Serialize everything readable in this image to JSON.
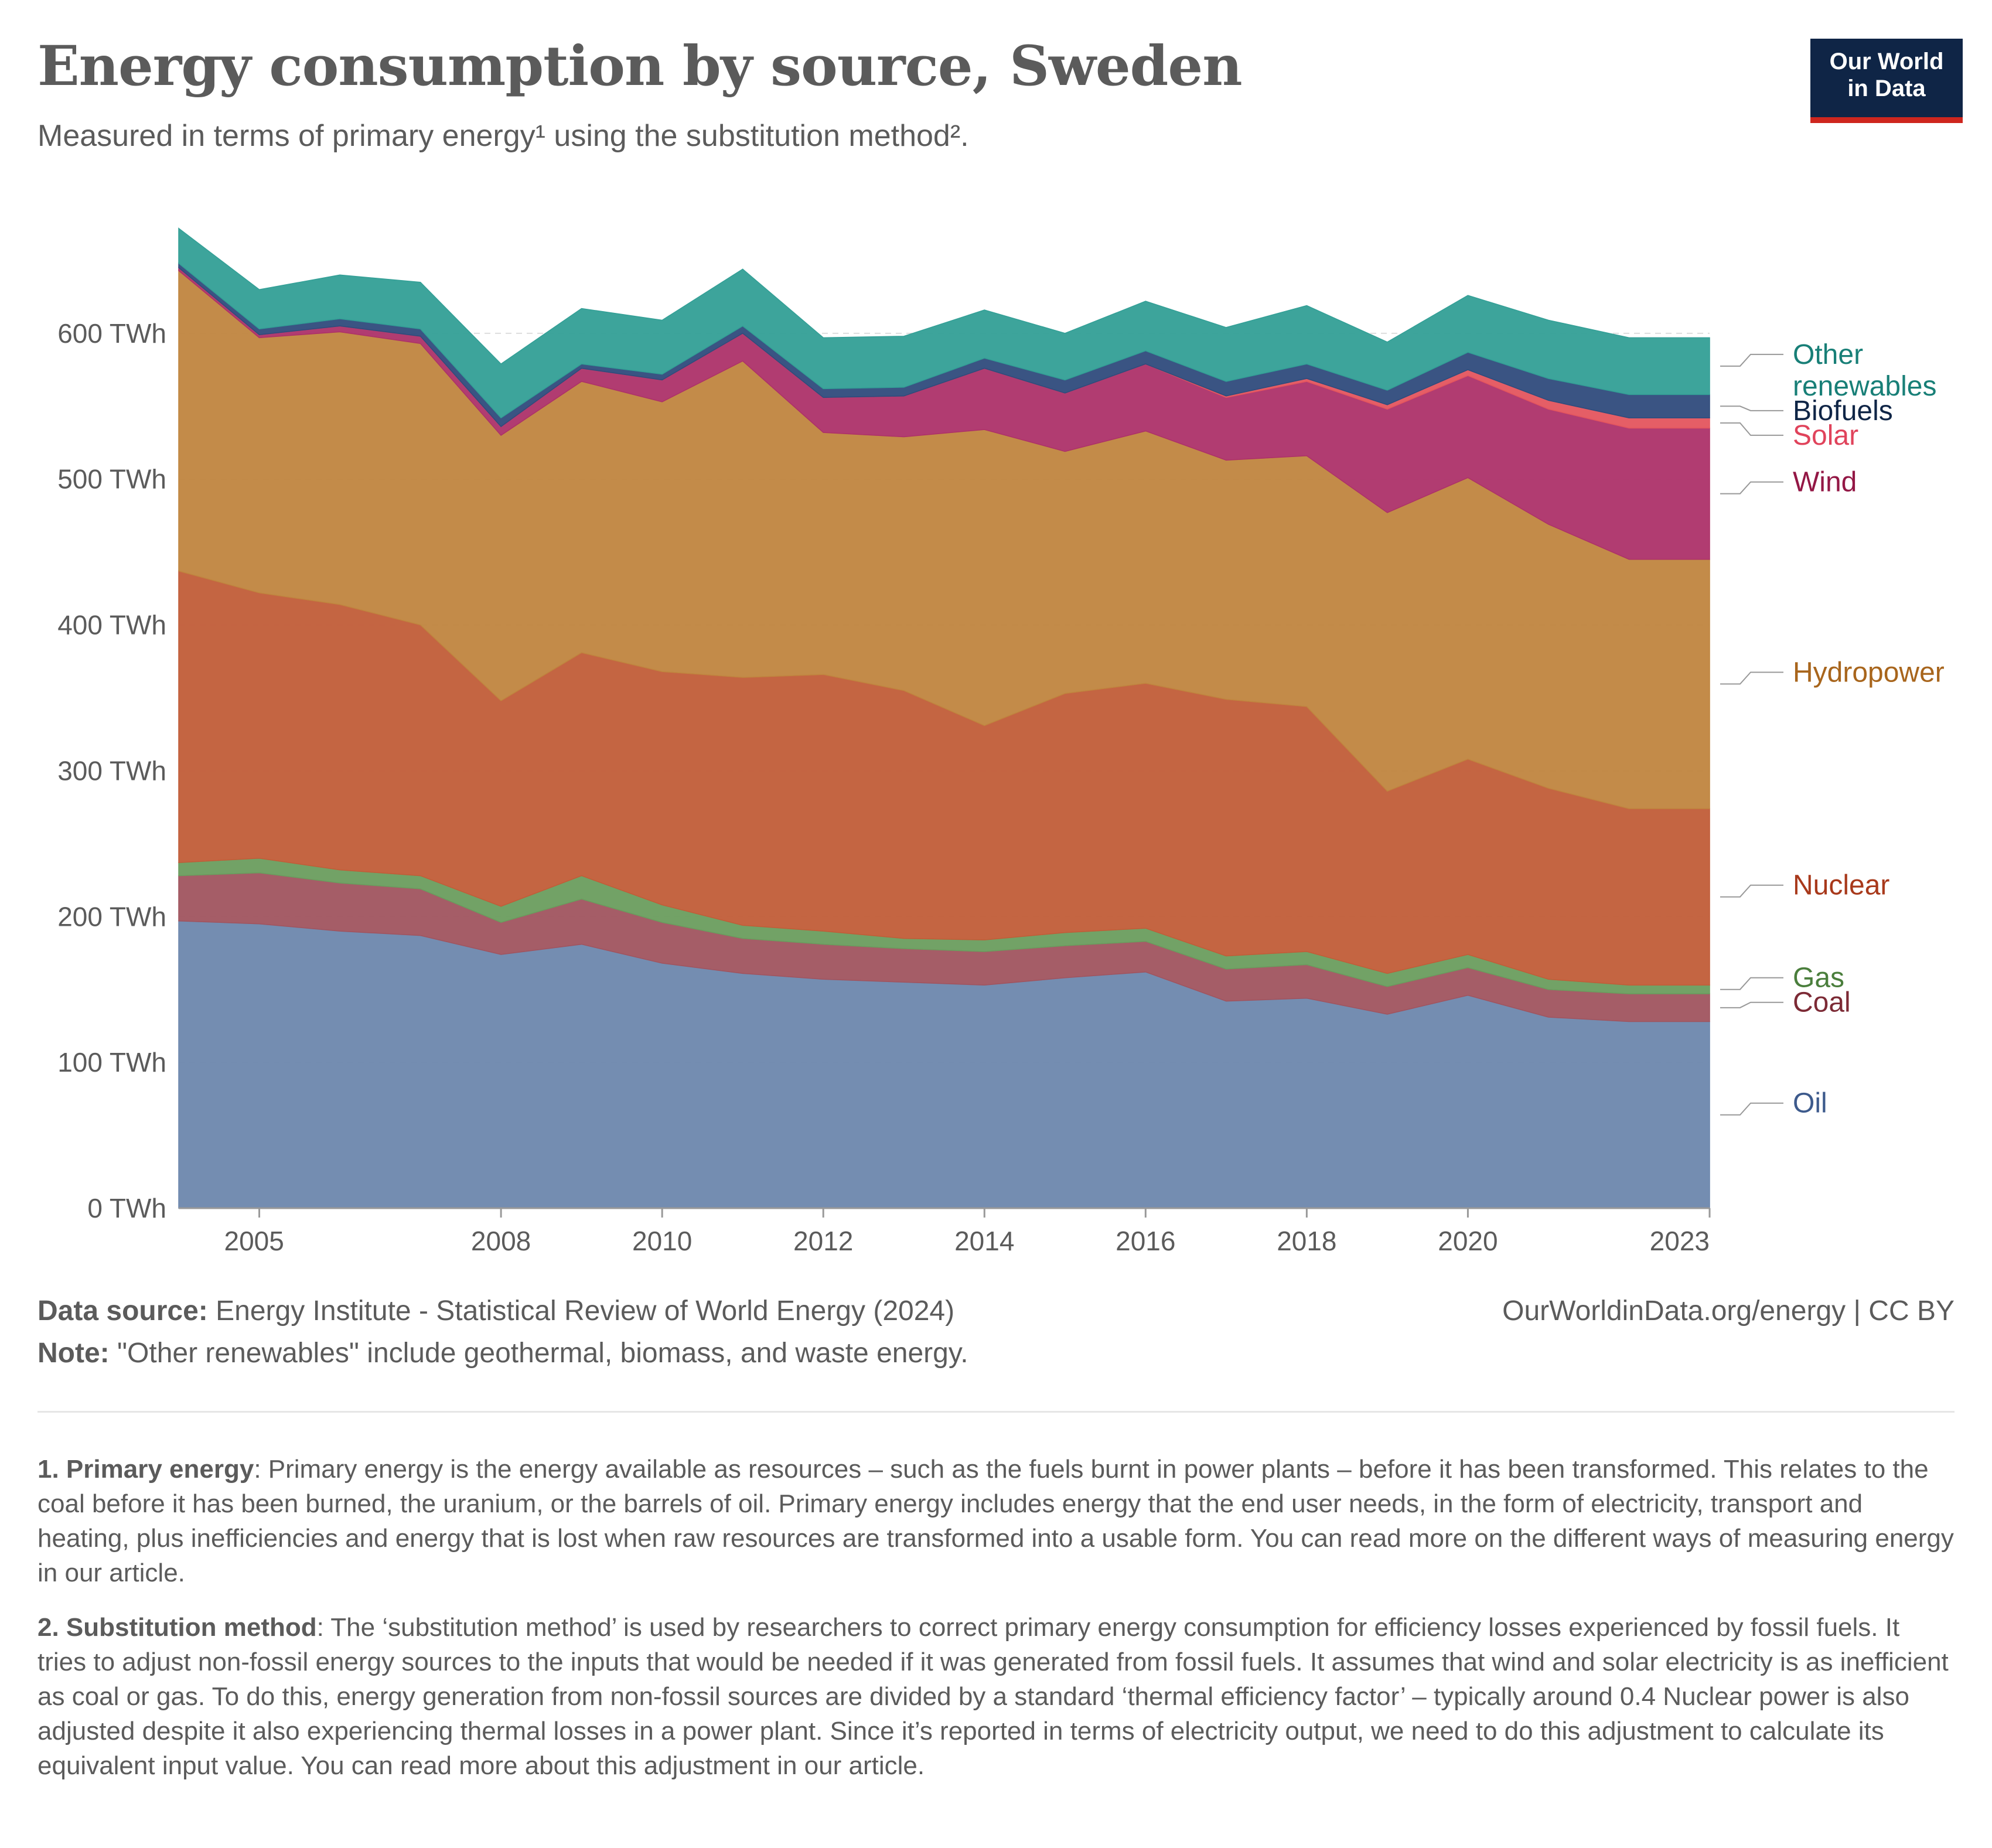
{
  "title": "Energy consumption by source, Sweden",
  "subtitle": "Measured in terms of primary energy¹ using the substitution method².",
  "logo": {
    "line1": "Our World",
    "line2": "in Data"
  },
  "chart_data": {
    "type": "area",
    "stacked": true,
    "x": [
      2004,
      2005,
      2006,
      2007,
      2008,
      2009,
      2010,
      2011,
      2012,
      2013,
      2014,
      2015,
      2016,
      2017,
      2018,
      2019,
      2020,
      2021,
      2022,
      2023
    ],
    "x_tick_labels": [
      "2005",
      "2008",
      "2010",
      "2012",
      "2014",
      "2016",
      "2018",
      "2020",
      "2023"
    ],
    "y_tick_labels": [
      "0 TWh",
      "100 TWh",
      "200 TWh",
      "300 TWh",
      "400 TWh",
      "500 TWh",
      "600 TWh"
    ],
    "ylim": [
      0,
      700
    ],
    "y_ticks": [
      0,
      100,
      200,
      300,
      400,
      500,
      600
    ],
    "unit": "TWh",
    "grid": true,
    "legend_placement": "right",
    "series": [
      {
        "name": "Oil",
        "color": "#6d87ad",
        "values": [
          197,
          195,
          190,
          187,
          174,
          181,
          168,
          161,
          157,
          155,
          153,
          158,
          162,
          142,
          144,
          133,
          146,
          131,
          128,
          128
        ]
      },
      {
        "name": "Coal",
        "color": "#a0545f",
        "values": [
          31,
          35,
          33,
          32,
          22,
          31,
          28,
          24,
          24,
          23,
          23,
          22,
          21,
          22,
          23,
          19,
          19,
          19,
          19,
          19
        ]
      },
      {
        "name": "Gas",
        "color": "#6a9d5e",
        "values": [
          9,
          10,
          9,
          9,
          11,
          16,
          12,
          9,
          9,
          7,
          8,
          9,
          9,
          9,
          9,
          9,
          9,
          7,
          6,
          6
        ]
      },
      {
        "name": "Nuclear",
        "color": "#c15d38",
        "values": [
          200,
          182,
          182,
          172,
          141,
          153,
          160,
          170,
          176,
          170,
          147,
          164,
          168,
          176,
          168,
          125,
          134,
          131,
          121,
          121
        ]
      },
      {
        "name": "Hydropower",
        "color": "#c0853f",
        "values": [
          206,
          175,
          187,
          193,
          182,
          186,
          185,
          217,
          166,
          174,
          203,
          166,
          173,
          164,
          172,
          191,
          193,
          181,
          171,
          171
        ]
      },
      {
        "name": "Wind",
        "color": "#ad3169",
        "values": [
          2,
          2,
          4,
          5,
          6,
          9,
          15,
          19,
          24,
          28,
          42,
          40,
          46,
          43,
          51,
          71,
          70,
          79,
          90,
          90
        ]
      },
      {
        "name": "Solar",
        "color": "#e4555e",
        "values": [
          0,
          0,
          0,
          0,
          0,
          0,
          0,
          0,
          0,
          0,
          0,
          0,
          0,
          1,
          2,
          3,
          4,
          6,
          7,
          7
        ]
      },
      {
        "name": "Biofuels",
        "color": "#2f4b7c",
        "values": [
          3,
          4,
          5,
          5,
          6,
          3,
          4,
          5,
          6,
          6,
          7,
          9,
          9,
          10,
          10,
          10,
          12,
          15,
          16,
          16
        ]
      },
      {
        "name": "Other renewables",
        "color": "#339f96",
        "values": [
          24,
          27,
          30,
          32,
          37,
          38,
          37,
          39,
          35,
          35,
          33,
          32,
          34,
          37,
          40,
          33,
          39,
          40,
          39,
          39
        ]
      }
    ],
    "legend_labels": [
      {
        "series": "Other renewables",
        "lines": [
          "Other",
          "renewables"
        ],
        "color": "#187f77"
      },
      {
        "series": "Biofuels",
        "lines": [
          "Biofuels"
        ],
        "color": "#0f2546"
      },
      {
        "series": "Solar",
        "lines": [
          "Solar"
        ],
        "color": "#e0435b"
      },
      {
        "series": "Wind",
        "lines": [
          "Wind"
        ],
        "color": "#931745"
      },
      {
        "series": "Hydropower",
        "lines": [
          "Hydropower"
        ],
        "color": "#a8651c"
      },
      {
        "series": "Nuclear",
        "lines": [
          "Nuclear"
        ],
        "color": "#a8391b"
      },
      {
        "series": "Gas",
        "lines": [
          "Gas"
        ],
        "color": "#4a7e3c"
      },
      {
        "series": "Coal",
        "lines": [
          "Coal"
        ],
        "color": "#7c2a35"
      },
      {
        "series": "Oil",
        "lines": [
          "Oil"
        ],
        "color": "#3d5a8c"
      }
    ]
  },
  "footer": {
    "source_label": "Data source:",
    "source_text": " Energy Institute - Statistical Review of World Energy (2024)",
    "note_label": "Note:",
    "note_text": " \"Other renewables\" include geothermal, biomass, and waste energy.",
    "credit": "OurWorldinData.org/energy | CC BY"
  },
  "footnotes": [
    {
      "label": "1. Primary energy",
      "text": ": Primary energy is the energy available as resources – such as the fuels burnt in power plants – before it has been transformed. This relates to the coal before it has been burned, the uranium, or the barrels of oil. Primary energy includes energy that the end user needs, in the form of electricity, transport and heating, plus inefficiencies and energy that is lost when raw resources are transformed into a usable form. You can read more on the different ways of measuring energy in our article."
    },
    {
      "label": "2. Substitution method",
      "text": ": The ‘substitution method’ is used by researchers to correct primary energy consumption for efficiency losses experienced by fossil fuels. It tries to adjust non-fossil energy sources to the inputs that would be needed if it was generated from fossil fuels. It assumes that wind and solar electricity is as inefficient as coal or gas. To do this, energy generation from non-fossil sources are divided by a standard ‘thermal efficiency factor’ – typically around 0.4 Nuclear power is also adjusted despite it also experiencing thermal losses in a power plant. Since it’s reported in terms of electricity output, we need to do this adjustment to calculate its equivalent input value. You can read more about this adjustment in our article."
    }
  ]
}
